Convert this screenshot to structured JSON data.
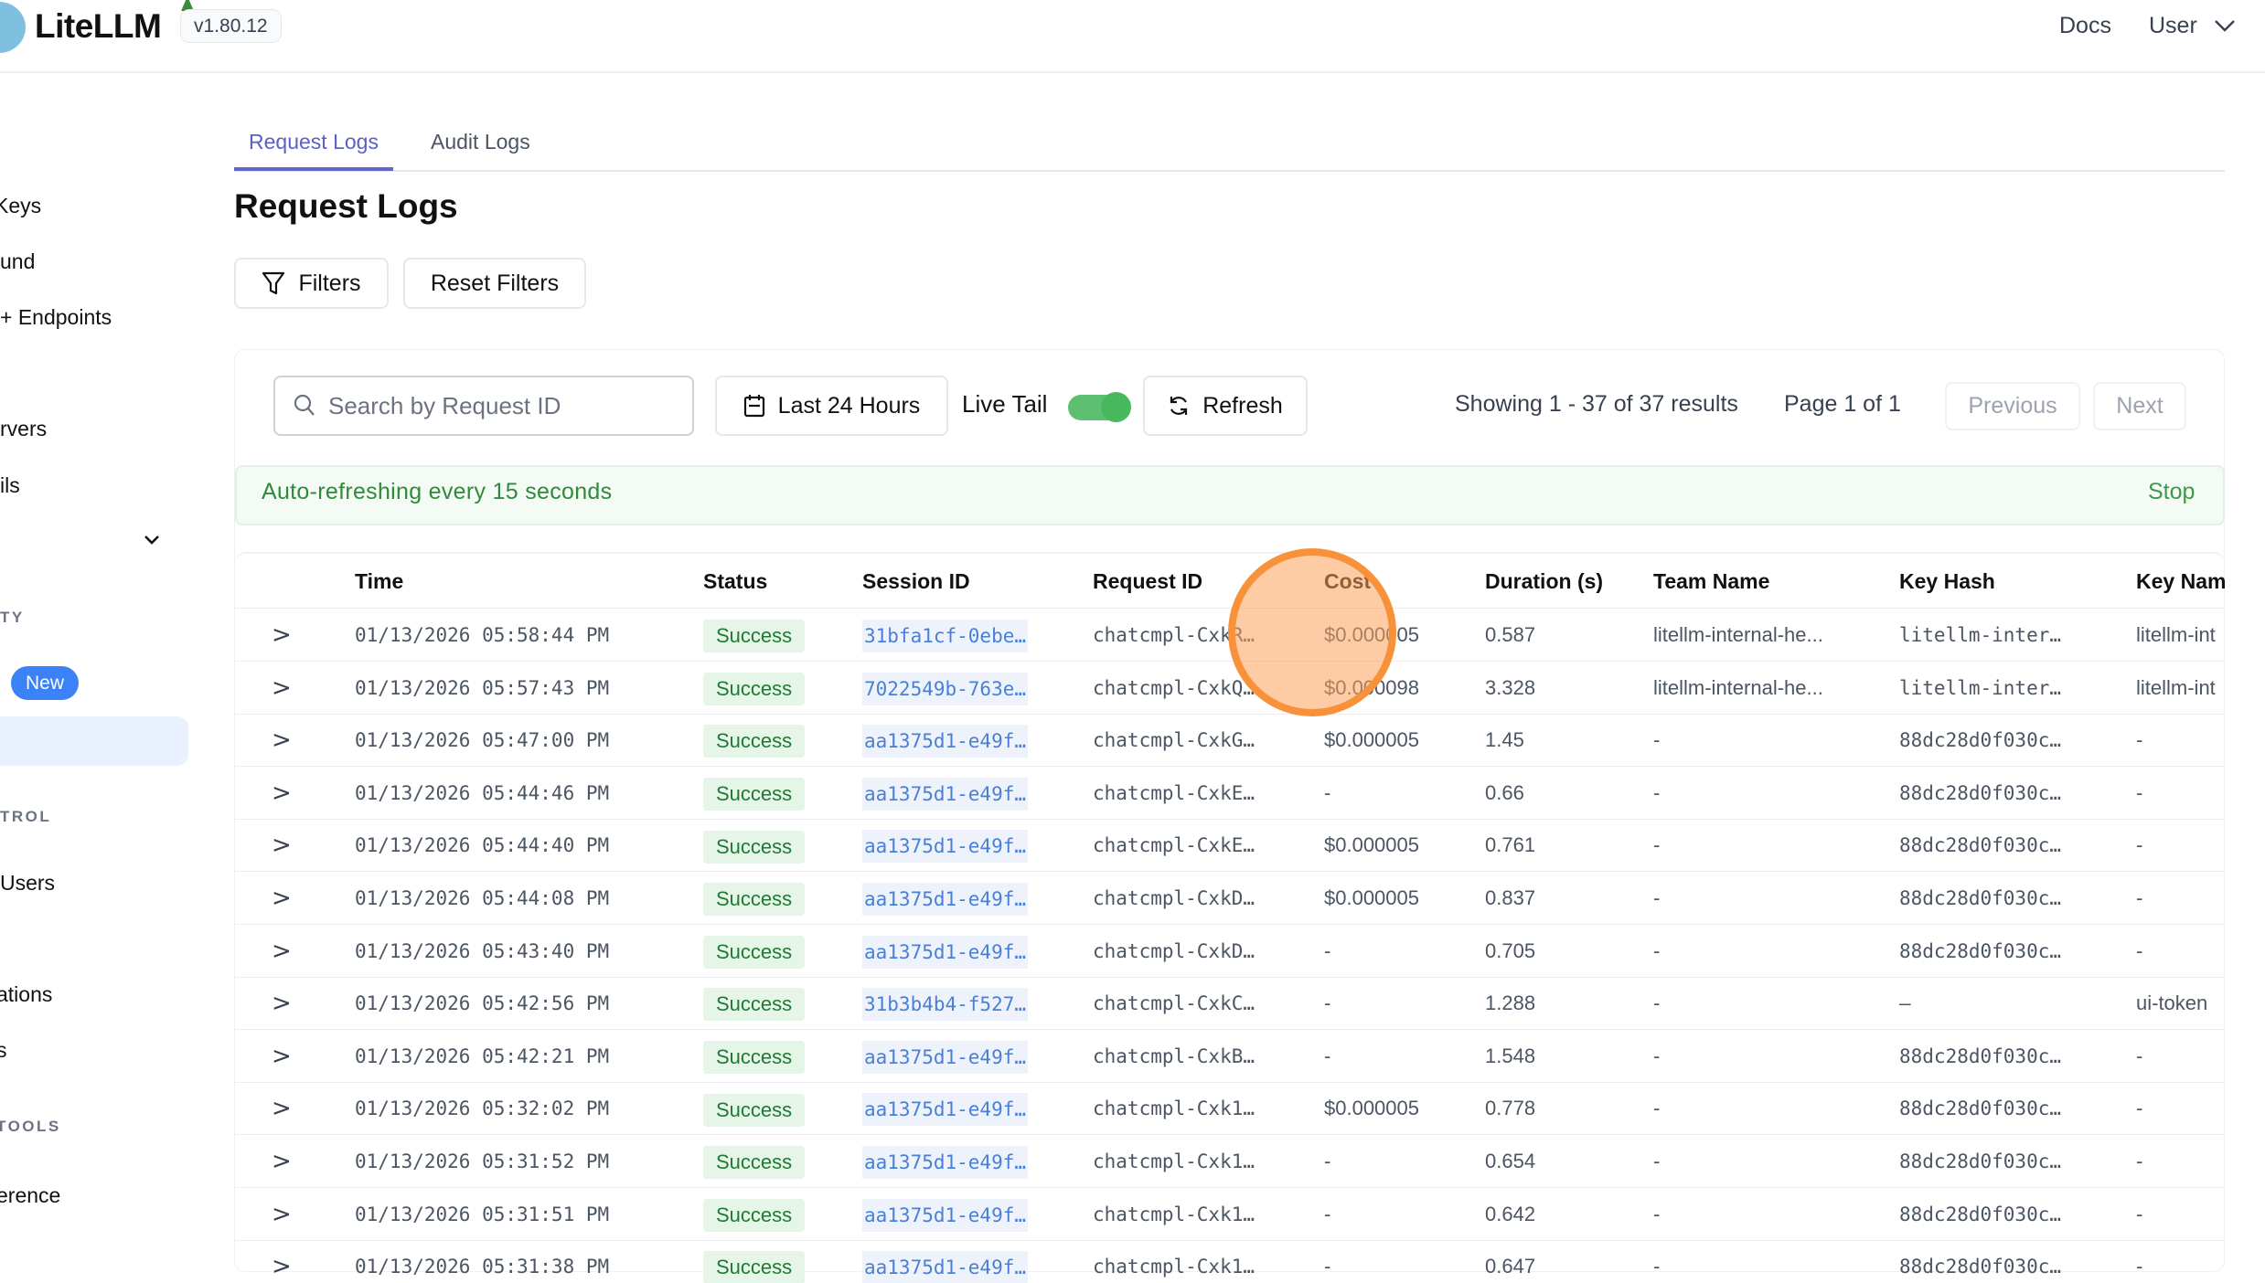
{
  "header": {
    "app_name": "LiteLLM",
    "version": "v1.80.12",
    "docs": "Docs",
    "user": "User"
  },
  "sidebar": {
    "items": [
      "Keys",
      "und",
      "+ Endpoints",
      "rvers",
      "ils",
      "TY",
      "New",
      "TROL",
      "Users",
      "ations",
      "s",
      "TOOLS",
      "erence"
    ]
  },
  "tabs": [
    "Request Logs",
    "Audit Logs"
  ],
  "page_title": "Request Logs",
  "toolbar": {
    "filters": "Filters",
    "reset": "Reset Filters",
    "search_placeholder": "Search by Request ID",
    "time_range": "Last 24 Hours",
    "live_tail": "Live Tail",
    "live_tail_on": true,
    "refresh": "Refresh",
    "showing": "Showing 1 - 37 of 37 results",
    "page": "Page 1 of 1",
    "previous": "Previous",
    "next": "Next"
  },
  "banner": {
    "text": "Auto-refreshing every 15 seconds",
    "stop": "Stop"
  },
  "table": {
    "columns": [
      "Time",
      "Status",
      "Session ID",
      "Request ID",
      "Cost",
      "Duration (s)",
      "Team Name",
      "Key Hash",
      "Key Name"
    ],
    "rows": [
      [
        "01/13/2026 05:58:44 PM",
        "Success",
        "31bfa1cf-0ebe…",
        "chatcmpl-CxkR…",
        "$0.000005",
        "0.587",
        "litellm-internal-he...",
        "litellm-inter…",
        "litellm-int"
      ],
      [
        "01/13/2026 05:57:43 PM",
        "Success",
        "7022549b-763e…",
        "chatcmpl-CxkQ…",
        "$0.000098",
        "3.328",
        "litellm-internal-he...",
        "litellm-inter…",
        "litellm-int"
      ],
      [
        "01/13/2026 05:47:00 PM",
        "Success",
        "aa1375d1-e49f…",
        "chatcmpl-CxkG…",
        "$0.000005",
        "1.45",
        "-",
        "88dc28d0f030c…",
        "-"
      ],
      [
        "01/13/2026 05:44:46 PM",
        "Success",
        "aa1375d1-e49f…",
        "chatcmpl-CxkE…",
        "-",
        "0.66",
        "-",
        "88dc28d0f030c…",
        "-"
      ],
      [
        "01/13/2026 05:44:40 PM",
        "Success",
        "aa1375d1-e49f…",
        "chatcmpl-CxkE…",
        "$0.000005",
        "0.761",
        "-",
        "88dc28d0f030c…",
        "-"
      ],
      [
        "01/13/2026 05:44:08 PM",
        "Success",
        "aa1375d1-e49f…",
        "chatcmpl-CxkD…",
        "$0.000005",
        "0.837",
        "-",
        "88dc28d0f030c…",
        "-"
      ],
      [
        "01/13/2026 05:43:40 PM",
        "Success",
        "aa1375d1-e49f…",
        "chatcmpl-CxkD…",
        "-",
        "0.705",
        "-",
        "88dc28d0f030c…",
        "-"
      ],
      [
        "01/13/2026 05:42:56 PM",
        "Success",
        "31b3b4b4-f527…",
        "chatcmpl-CxkC…",
        "-",
        "1.288",
        "-",
        "–",
        "ui-token"
      ],
      [
        "01/13/2026 05:42:21 PM",
        "Success",
        "aa1375d1-e49f…",
        "chatcmpl-CxkB…",
        "-",
        "1.548",
        "-",
        "88dc28d0f030c…",
        "-"
      ],
      [
        "01/13/2026 05:32:02 PM",
        "Success",
        "aa1375d1-e49f…",
        "chatcmpl-Cxk1…",
        "$0.000005",
        "0.778",
        "-",
        "88dc28d0f030c…",
        "-"
      ],
      [
        "01/13/2026 05:31:52 PM",
        "Success",
        "aa1375d1-e49f…",
        "chatcmpl-Cxk1…",
        "-",
        "0.654",
        "-",
        "88dc28d0f030c…",
        "-"
      ],
      [
        "01/13/2026 05:31:51 PM",
        "Success",
        "aa1375d1-e49f…",
        "chatcmpl-Cxk1…",
        "-",
        "0.642",
        "-",
        "88dc28d0f030c…",
        "-"
      ],
      [
        "01/13/2026 05:31:38 PM",
        "Success",
        "aa1375d1-e49f…",
        "chatcmpl-Cxk1…",
        "-",
        "0.647",
        "-",
        "88dc28d0f030c…",
        "-"
      ]
    ]
  },
  "colors": {
    "accent": "#6366c9",
    "success_bg": "#e5f5e8",
    "success_text": "#1f7a33",
    "link": "#4a7fd6",
    "cursor_highlight": "#f7923a"
  }
}
